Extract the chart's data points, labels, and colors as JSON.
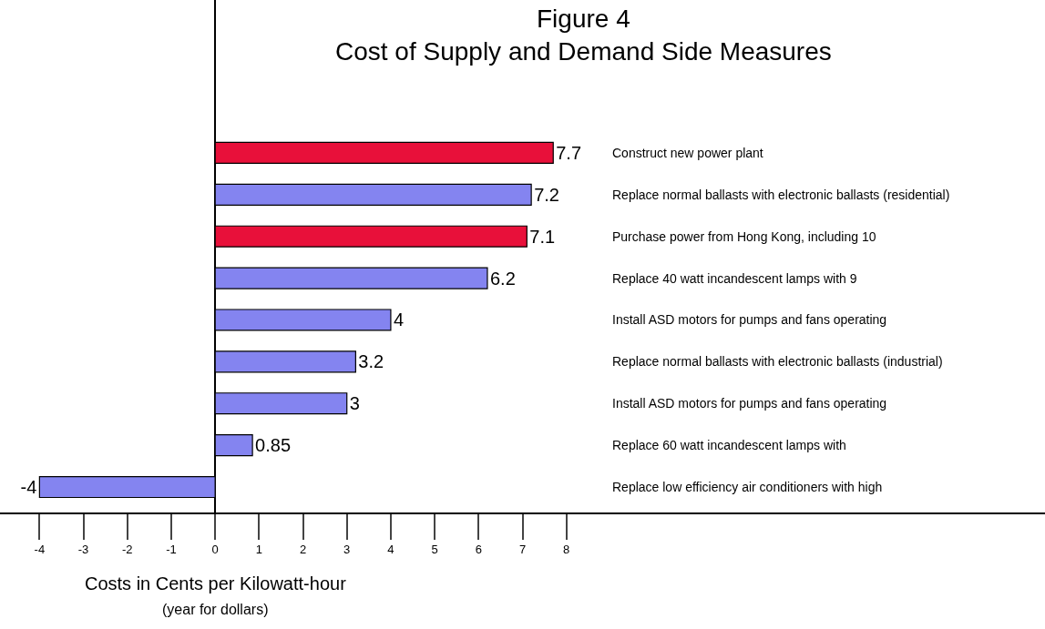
{
  "chart_data": {
    "type": "bar",
    "orientation": "horizontal",
    "title": "Figure 4\nCost of Supply and Demand Side Measures",
    "xlabel": "Costs in Cents per Kilowatt-hour",
    "annotations": [
      "(year for dollars)"
    ],
    "categories": [
      "Construct new power plant",
      "Replace normal ballasts with electronic ballasts (residential)",
      "Purchase power from Hong Kong, including 10",
      "Replace 40 watt incandescent lamps with 9",
      "Install ASD motors for pumps and fans operating",
      "Replace normal ballasts with electronic ballasts (industrial)",
      "Install ASD motors for pumps and fans operating",
      "Replace 60 watt incandescent lamps with",
      "Replace low efficiency air conditioners with high"
    ],
    "values": [
      7.7,
      7.2,
      7.1,
      6.2,
      4,
      3.2,
      3,
      0.85,
      -4
    ],
    "colors": [
      "#e8103a",
      "#8484f0",
      "#e8103a",
      "#8484f0",
      "#8484f0",
      "#8484f0",
      "#8484f0",
      "#8484f0",
      "#8484f0"
    ],
    "data_labels": true,
    "xlim": [
      -4.9,
      18.9
    ],
    "xticks": [
      -4,
      -3,
      -2,
      -1,
      0,
      1,
      2,
      3,
      4,
      5,
      6,
      7,
      8
    ]
  }
}
